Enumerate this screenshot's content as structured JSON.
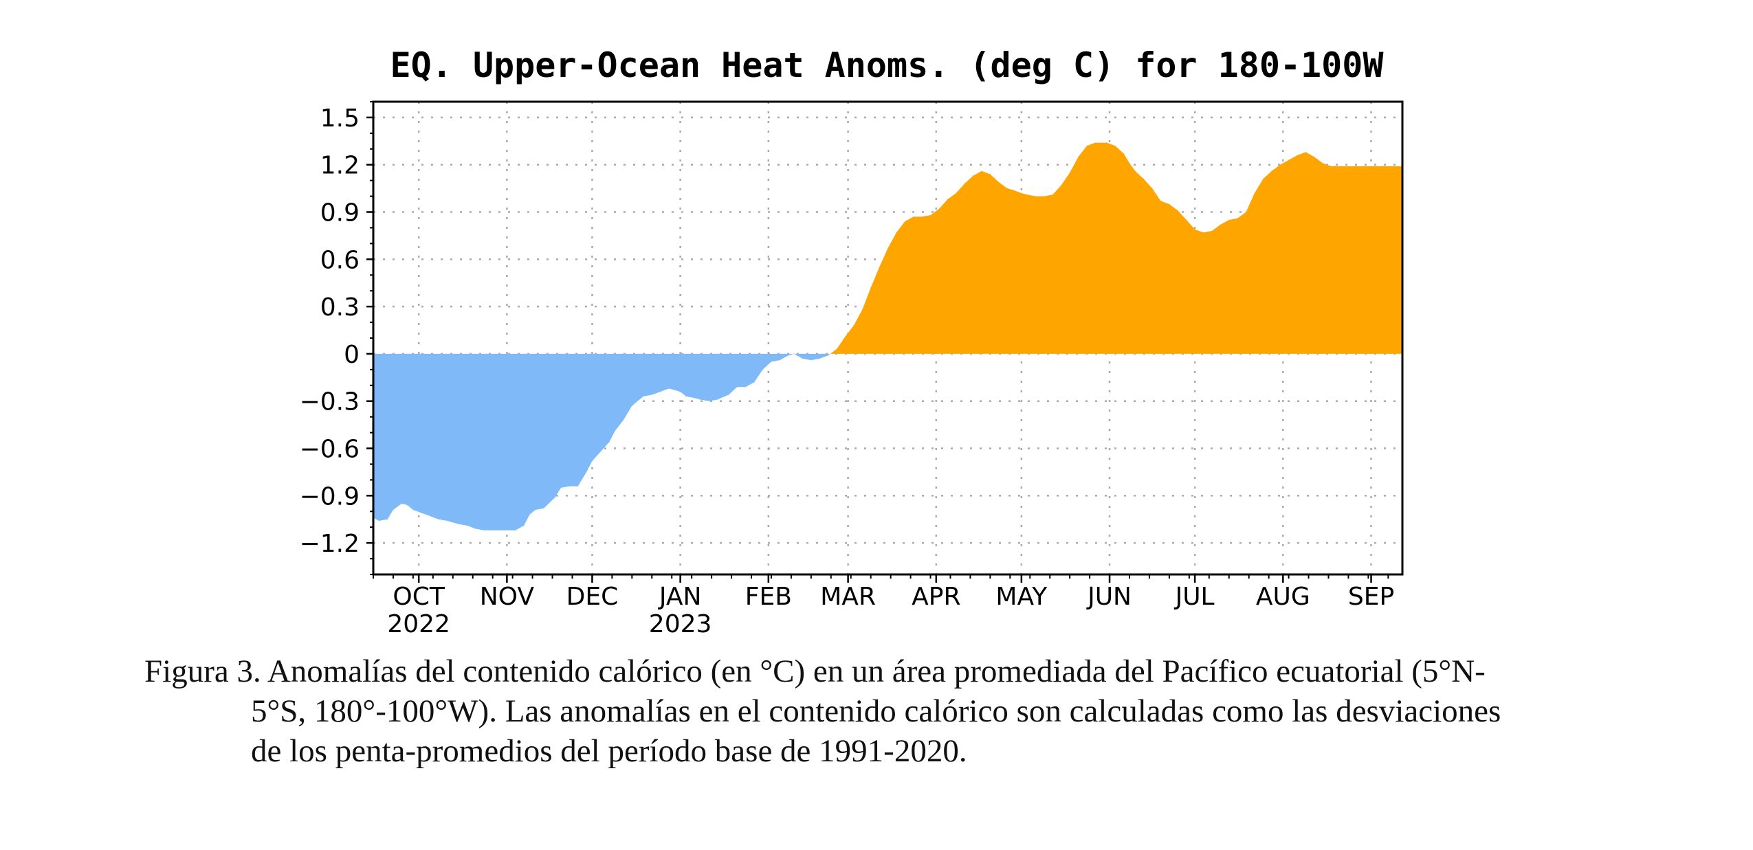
{
  "chart_data": {
    "type": "area",
    "title": "EQ. Upper-Ocean Heat Anoms. (deg C) for 180-100W",
    "ylim": [
      -1.4,
      1.6
    ],
    "yticks": [
      {
        "v": 1.5,
        "label": "1.5"
      },
      {
        "v": 1.2,
        "label": "1.2"
      },
      {
        "v": 0.9,
        "label": "0.9"
      },
      {
        "v": 0.6,
        "label": "0.6"
      },
      {
        "v": 0.3,
        "label": "0.3"
      },
      {
        "v": 0,
        "label": "0"
      },
      {
        "v": -0.3,
        "label": "−0.3"
      },
      {
        "v": -0.6,
        "label": "−0.6"
      },
      {
        "v": -0.9,
        "label": "−0.9"
      },
      {
        "v": -1.2,
        "label": "−1.2"
      }
    ],
    "xlim": [
      "2022-09-15",
      "2023-09-12"
    ],
    "xticks": [
      {
        "date": "2022-10-01",
        "label": "OCT",
        "year": "2022"
      },
      {
        "date": "2022-11-01",
        "label": "NOV",
        "year": ""
      },
      {
        "date": "2022-12-01",
        "label": "DEC",
        "year": ""
      },
      {
        "date": "2023-01-01",
        "label": "JAN",
        "year": "2023"
      },
      {
        "date": "2023-02-01",
        "label": "FEB",
        "year": ""
      },
      {
        "date": "2023-03-01",
        "label": "MAR",
        "year": ""
      },
      {
        "date": "2023-04-01",
        "label": "APR",
        "year": ""
      },
      {
        "date": "2023-05-01",
        "label": "MAY",
        "year": ""
      },
      {
        "date": "2023-06-01",
        "label": "JUN",
        "year": ""
      },
      {
        "date": "2023-07-01",
        "label": "JUL",
        "year": ""
      },
      {
        "date": "2023-08-01",
        "label": "AUG",
        "year": ""
      },
      {
        "date": "2023-09-01",
        "label": "SEP",
        "year": ""
      }
    ],
    "grid": true,
    "positive_color": "#ffa500",
    "negative_color": "#7fb9f8",
    "series": [
      {
        "x": [
          "2022-09-15",
          "2022-09-17",
          "2022-09-20",
          "2022-09-22",
          "2022-09-25",
          "2022-09-27",
          "2022-09-29",
          "2022-10-02",
          "2022-10-05",
          "2022-10-08",
          "2022-10-11",
          "2022-10-15",
          "2022-10-18",
          "2022-10-21",
          "2022-10-24",
          "2022-10-27",
          "2022-10-31",
          "2022-11-04",
          "2022-11-07",
          "2022-11-09",
          "2022-11-11",
          "2022-11-14",
          "2022-11-18",
          "2022-11-20",
          "2022-11-23",
          "2022-11-26",
          "2022-11-29",
          "2022-12-01",
          "2022-12-04",
          "2022-12-07",
          "2022-12-09",
          "2022-12-12",
          "2022-12-15",
          "2022-12-19",
          "2022-12-22",
          "2022-12-25",
          "2022-12-28",
          "2023-01-01",
          "2023-01-03",
          "2023-01-06",
          "2023-01-08",
          "2023-01-11",
          "2023-01-14",
          "2023-01-18",
          "2023-01-21",
          "2023-01-24",
          "2023-01-27",
          "2023-01-30",
          "2023-02-02",
          "2023-02-05",
          "2023-02-08",
          "2023-02-10",
          "2023-02-13",
          "2023-02-16",
          "2023-02-19",
          "2023-02-22",
          "2023-02-25",
          "2023-02-28",
          "2023-03-03",
          "2023-03-06",
          "2023-03-09",
          "2023-03-12",
          "2023-03-15",
          "2023-03-18",
          "2023-03-21",
          "2023-03-24",
          "2023-03-27",
          "2023-03-30",
          "2023-04-02",
          "2023-04-05",
          "2023-04-08",
          "2023-04-11",
          "2023-04-14",
          "2023-04-17",
          "2023-04-20",
          "2023-04-23",
          "2023-04-26",
          "2023-04-28",
          "2023-05-01",
          "2023-05-03",
          "2023-05-06",
          "2023-05-09",
          "2023-05-12",
          "2023-05-15",
          "2023-05-18",
          "2023-05-21",
          "2023-05-24",
          "2023-05-27",
          "2023-05-31",
          "2023-06-03",
          "2023-06-06",
          "2023-06-08",
          "2023-06-10",
          "2023-06-13",
          "2023-06-16",
          "2023-06-19",
          "2023-06-22",
          "2023-06-25",
          "2023-06-28",
          "2023-07-01",
          "2023-07-04",
          "2023-07-07",
          "2023-07-10",
          "2023-07-13",
          "2023-07-16",
          "2023-07-19",
          "2023-07-22",
          "2023-07-25",
          "2023-07-28",
          "2023-07-31",
          "2023-08-03",
          "2023-08-06",
          "2023-08-09",
          "2023-08-12",
          "2023-08-15",
          "2023-08-18",
          "2023-08-21",
          "2023-08-24",
          "2023-08-27",
          "2023-08-30",
          "2023-09-02",
          "2023-09-05",
          "2023-09-08",
          "2023-09-12"
        ],
        "y": [
          -1.04,
          -1.06,
          -1.05,
          -0.99,
          -0.95,
          -0.96,
          -0.99,
          -1.01,
          -1.03,
          -1.05,
          -1.06,
          -1.08,
          -1.09,
          -1.11,
          -1.12,
          -1.12,
          -1.12,
          -1.12,
          -1.09,
          -1.02,
          -0.99,
          -0.98,
          -0.91,
          -0.85,
          -0.84,
          -0.84,
          -0.75,
          -0.68,
          -0.62,
          -0.56,
          -0.49,
          -0.42,
          -0.33,
          -0.27,
          -0.26,
          -0.24,
          -0.22,
          -0.24,
          -0.27,
          -0.28,
          -0.29,
          -0.3,
          -0.29,
          -0.26,
          -0.21,
          -0.21,
          -0.18,
          -0.1,
          -0.05,
          -0.04,
          -0.01,
          0.0,
          -0.03,
          -0.04,
          -0.03,
          -0.01,
          0.03,
          0.11,
          0.18,
          0.28,
          0.42,
          0.55,
          0.67,
          0.77,
          0.84,
          0.87,
          0.87,
          0.88,
          0.92,
          0.98,
          1.02,
          1.08,
          1.13,
          1.16,
          1.14,
          1.09,
          1.05,
          1.04,
          1.02,
          1.01,
          1.0,
          1.0,
          1.01,
          1.07,
          1.15,
          1.25,
          1.32,
          1.34,
          1.34,
          1.32,
          1.27,
          1.21,
          1.16,
          1.11,
          1.05,
          0.97,
          0.95,
          0.91,
          0.85,
          0.79,
          0.77,
          0.78,
          0.82,
          0.85,
          0.86,
          0.9,
          1.02,
          1.11,
          1.16,
          1.2,
          1.23,
          1.26,
          1.28,
          1.25,
          1.21,
          1.19,
          1.19,
          1.19,
          1.19,
          1.19,
          1.19,
          1.19,
          1.19,
          1.19
        ]
      }
    ]
  },
  "caption": {
    "line1": "Figura 3. Anomalías del contenido calórico (en °C) en un área promediada del Pacífico ecuatorial (5°N-",
    "line2": "5°S, 180°-100°W). Las anomalías en el contenido calórico son calculadas como las desviaciones",
    "line3": "de los penta-promedios del período base de 1991-2020."
  }
}
